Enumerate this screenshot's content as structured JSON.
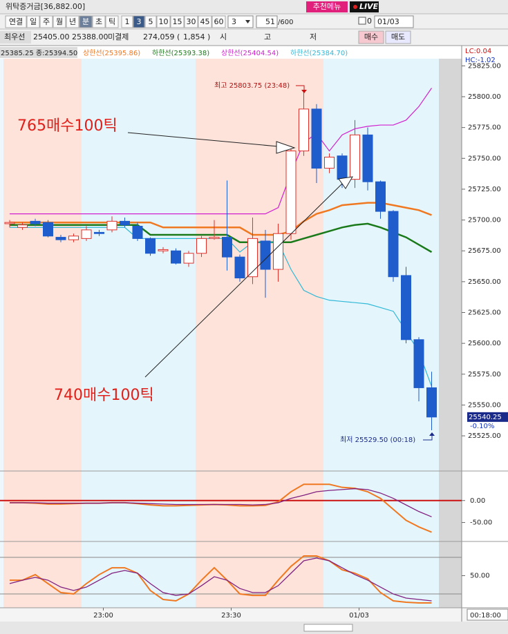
{
  "toolbar": {
    "margin": "위탁증거금[36,882.00]",
    "recommend": "추천메뉴",
    "live": "LIVE",
    "periods": [
      "연결",
      "일",
      "주",
      "월",
      "년",
      "분",
      "초",
      "틱"
    ],
    "active_period": 5,
    "intervals": [
      "1",
      "3",
      "5",
      "10",
      "15",
      "30",
      "45",
      "60"
    ],
    "active_interval": 1,
    "combo": "3",
    "count": "51",
    "max": "/600",
    "check": "0",
    "date": "01/03"
  },
  "quote": {
    "label": "최우선",
    "bid": "25405.00",
    "ask": "25388.00",
    "oi_label": "미결제",
    "oi": "274,059",
    "oi_open": "(",
    "oi_change": "1,854",
    "oi_close": ")",
    "open_label": "시",
    "high_label": "고",
    "low_label": "저",
    "buy": "매수",
    "sell": "매도"
  },
  "chart_data": [
    {
      "type": "candlestick",
      "info": "25385.25 종:25394.50",
      "lc": "LC:0.04",
      "hc": "HC:-1.02",
      "annotations": [
        "765매수100틱",
        "740매수100틱",
        "최고 25803.75 (23:48)",
        "최저 25529.50 (00:18)"
      ],
      "last_price": "25540.25",
      "change": "-0.10%",
      "cursor_time": "00:18:00",
      "categories": [
        null,
        null,
        null,
        null,
        null,
        null,
        null,
        "23:00",
        null,
        null,
        null,
        null,
        null,
        null,
        null,
        null,
        null,
        "23:30",
        null,
        null,
        null,
        null,
        null,
        null,
        null,
        null,
        null,
        "01/03",
        null,
        null,
        null,
        null,
        null,
        null
      ],
      "open": [
        25697,
        25694,
        25699,
        25698,
        25686,
        25684,
        25685,
        25690,
        25692,
        25699,
        25695,
        25685,
        25675,
        25675,
        25665,
        25673,
        25685,
        25686,
        25670,
        25654,
        25683,
        25660,
        25689,
        25756,
        25790,
        25742,
        25752,
        25733,
        25769,
        25731,
        25707,
        25655,
        25603,
        25564
      ],
      "high": [
        25700,
        25698,
        25701,
        25700,
        25688,
        25689,
        25695,
        25692,
        25703,
        25702,
        25698,
        25686,
        25678,
        25677,
        25675,
        25687,
        25700,
        25732,
        25672,
        25702,
        25692,
        25697,
        25760,
        25804,
        25794,
        25754,
        25754,
        25781,
        25775,
        25732,
        25708,
        25662,
        25605,
        25577
      ],
      "low": [
        25694,
        25692,
        25695,
        25686,
        25682,
        25682,
        25683,
        25687,
        25690,
        25694,
        25683,
        25671,
        25673,
        25664,
        25662,
        25670,
        25684,
        25659,
        25650,
        25648,
        25637,
        25650,
        25684,
        25752,
        25730,
        25738,
        25726,
        25726,
        25724,
        25701,
        25650,
        25600,
        25553,
        25529.5
      ],
      "close": [
        25698,
        25696,
        25697,
        25687,
        25684,
        25687,
        25692,
        25689,
        25699,
        25696,
        25685,
        25673,
        25676,
        25665,
        25673,
        25685,
        25686,
        25670,
        25653,
        25685,
        25660,
        25689,
        25756,
        25790,
        25742,
        25751,
        25733,
        25769,
        25731,
        25707,
        25654,
        25603,
        25564,
        25540.25
      ],
      "up_color": "#e0302a",
      "down_color": "#1f5ccc",
      "series": [
        {
          "name": "상한선(25395.86)",
          "color": "#f07820",
          "values": [
            25698,
            25698,
            25698,
            25698,
            25698,
            25698,
            25698,
            25698,
            25698,
            25698,
            25698,
            25698,
            25694,
            25694,
            25694,
            25694,
            25694,
            25694,
            25694,
            25688,
            25688,
            25688,
            25691,
            25699,
            25705,
            25708,
            25712,
            25713,
            25714,
            25714,
            25712,
            25710,
            25708,
            25704
          ]
        },
        {
          "name": "하한선(25393.38)",
          "color": "#1a7a1a",
          "values": [
            25696,
            25696,
            25696,
            25696,
            25696,
            25696,
            25696,
            25696,
            25696,
            25696,
            25696,
            25688,
            25688,
            25688,
            25688,
            25688,
            25688,
            25688,
            25682,
            25682,
            25682,
            25682,
            25682,
            25685,
            25688,
            25691,
            25694,
            25696,
            25697,
            25694,
            25690,
            25686,
            25680,
            25674
          ]
        },
        {
          "name": "상한선(25404.54)",
          "color": "#d020d0",
          "values": [
            25705,
            25705,
            25705,
            25705,
            25705,
            25705,
            25705,
            25705,
            25705,
            25705,
            25705,
            25705,
            25705,
            25705,
            25705,
            25705,
            25705,
            25705,
            25705,
            25705,
            25705,
            25710,
            25738,
            25763,
            25770,
            25756,
            25769,
            25774,
            25776,
            25777,
            25777,
            25781,
            25792,
            25807
          ]
        },
        {
          "name": "하한선(25384.70)",
          "color": "#30b8d8",
          "values": [
            25694,
            25694,
            25694,
            25694,
            25694,
            25694,
            25694,
            25694,
            25694,
            25694,
            25685,
            25685,
            25685,
            25685,
            25685,
            25685,
            25685,
            25685,
            25674,
            25682,
            25682,
            25682,
            25660,
            25643,
            25638,
            25635,
            25634,
            25633,
            25632,
            25629,
            25626,
            25610,
            25593,
            25565
          ]
        }
      ],
      "ylim": [
        25497.6,
        25830.8
      ],
      "yticks": [
        {
          "value": 25525,
          "label": "25525.00"
        },
        {
          "value": 25550,
          "label": "25550.00"
        },
        {
          "value": 25575,
          "label": "25575.00"
        },
        {
          "value": 25600,
          "label": "25600.00"
        },
        {
          "value": 25625,
          "label": "25625.00"
        },
        {
          "value": 25650,
          "label": "25650.00"
        },
        {
          "value": 25675,
          "label": "25675.00"
        },
        {
          "value": 25700,
          "label": "25700.00"
        },
        {
          "value": 25725,
          "label": "25725.00"
        },
        {
          "value": 25750,
          "label": "25750.00"
        },
        {
          "value": 25775,
          "label": "25775.00"
        },
        {
          "value": 25800,
          "label": "25800.00"
        },
        {
          "value": 25825,
          "label": "25825.00"
        }
      ]
    },
    {
      "type": "line",
      "reference_line": 0,
      "reference_color": "#cc1010",
      "ylim": [
        -90,
        62.5
      ],
      "yticks": [
        {
          "value": 0,
          "label": "0.00"
        },
        {
          "value": -50,
          "label": "-50.00"
        }
      ],
      "series": [
        {
          "color": "#f07820",
          "values": [
            -5,
            -5,
            -6,
            -8,
            -8,
            -7,
            -6,
            -6,
            -5,
            -5,
            -7,
            -10,
            -12,
            -12,
            -11,
            -10,
            -9,
            -10,
            -12,
            -12,
            -11,
            -3,
            20,
            37,
            37,
            37,
            30,
            28,
            20,
            5,
            -20,
            -45,
            -60,
            -72
          ]
        },
        {
          "color": "#802080",
          "values": [
            -5,
            -5,
            -5,
            -6,
            -6,
            -6,
            -6,
            -6,
            -5,
            -5,
            -6,
            -7,
            -8,
            -9,
            -9,
            -9,
            -9,
            -9,
            -9,
            -10,
            -9,
            -5,
            5,
            12,
            20,
            23,
            25,
            27,
            25,
            17,
            5,
            -10,
            -25,
            -37
          ]
        }
      ]
    },
    {
      "type": "line",
      "ylim": [
        0,
        100
      ],
      "levels": [
        20,
        80
      ],
      "yticks": [
        {
          "value": 50,
          "label": "50.00"
        }
      ],
      "series": [
        {
          "color": "#f07820",
          "values": [
            42.6,
            42.6,
            51.7,
            37,
            22.3,
            20,
            37,
            51.7,
            63,
            63,
            54,
            25.7,
            11,
            8.7,
            20,
            42.6,
            63,
            42.6,
            20,
            17.7,
            17.7,
            42.6,
            65.3,
            82.3,
            82.3,
            74.4,
            59.6,
            54,
            44.9,
            22.3,
            8.7,
            6.4,
            5.3,
            5.3
          ]
        },
        {
          "color": "#802080",
          "values": [
            37,
            42.6,
            47.2,
            42.6,
            31.3,
            25.7,
            31.3,
            42.6,
            54,
            58.5,
            54,
            37,
            22.3,
            17.7,
            20,
            33.6,
            48.3,
            42.6,
            29,
            22.3,
            22.3,
            33.6,
            54,
            74.4,
            78.9,
            74.4,
            63,
            51.7,
            42.6,
            31.3,
            20,
            13.2,
            11,
            8.7
          ]
        }
      ]
    }
  ]
}
